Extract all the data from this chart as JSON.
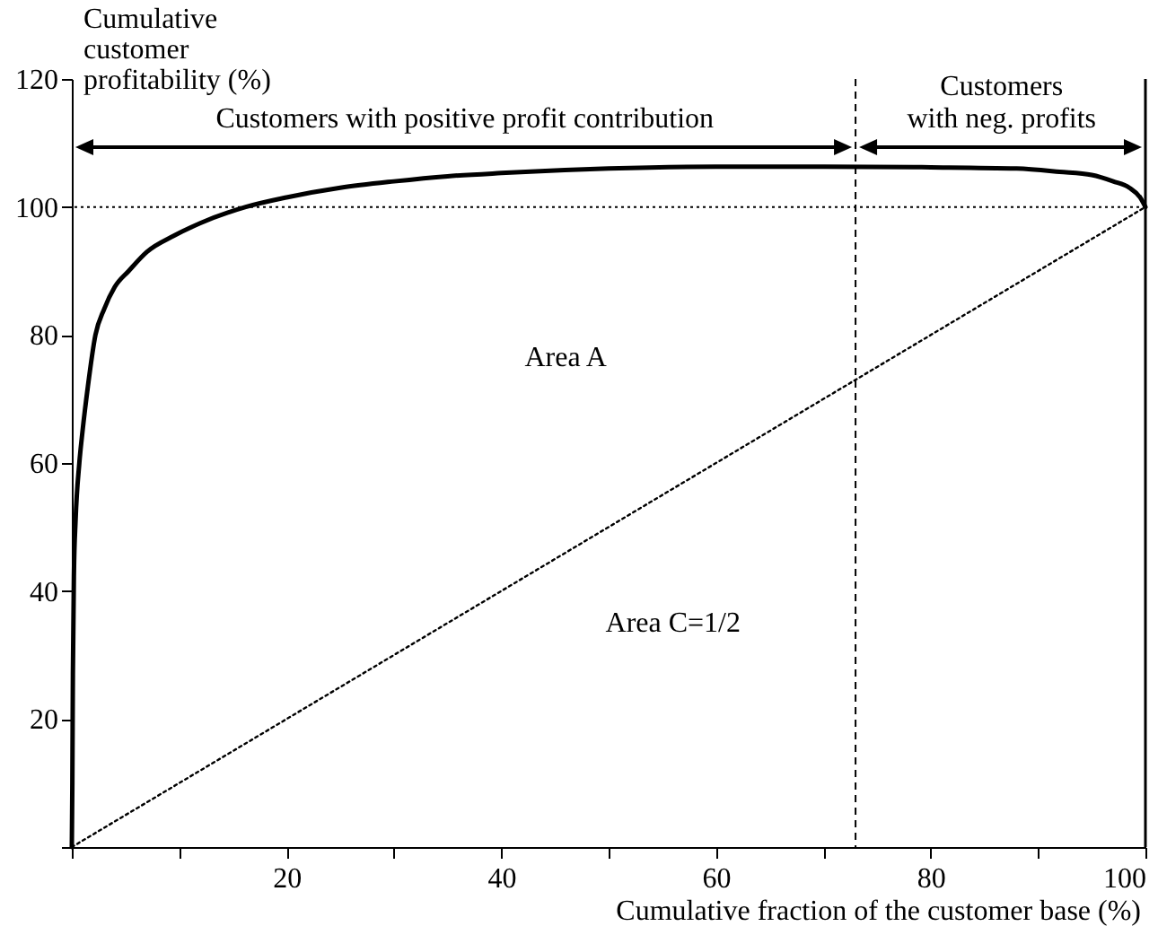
{
  "chart_data": {
    "type": "line",
    "xlabel": "Cumulative fraction of the customer base (%)",
    "ylabel": "Cumulative\ncustomer\nprofitability (%)",
    "xlim": [
      0,
      100
    ],
    "ylim": [
      0,
      120
    ],
    "xticks": [
      {
        "value": 0,
        "label": null
      },
      {
        "value": 10,
        "label": null
      },
      20,
      {
        "value": 30,
        "label": null
      },
      40,
      {
        "value": 50,
        "label": null
      },
      60,
      {
        "value": 70,
        "label": null
      },
      80,
      {
        "value": 90,
        "label": null
      },
      100
    ],
    "yticks": [
      {
        "value": 0,
        "label": null
      },
      20,
      40,
      60,
      80,
      100,
      120
    ],
    "series": [
      {
        "type": "line",
        "color": "#000000",
        "line_style": "solid",
        "x": [
          0,
          0.05,
          0.1,
          0.2,
          0.35,
          0.7,
          1,
          1.5,
          2.2,
          3,
          4,
          5.3,
          7,
          9.5,
          12,
          16.2,
          20,
          25,
          30,
          35,
          40,
          50,
          60,
          70,
          80,
          88,
          92,
          95,
          97,
          98.5,
          99.5,
          100
        ],
        "values": [
          0,
          10,
          27,
          43,
          51,
          60,
          65,
          72,
          80,
          84,
          87.5,
          90,
          93,
          95.5,
          97.5,
          100,
          101.5,
          103,
          104,
          104.8,
          105.3,
          106,
          106.3,
          106.3,
          106.2,
          106,
          105.5,
          105,
          104,
          103,
          101.5,
          100
        ]
      },
      {
        "type": "line",
        "color": "#000000",
        "line_style": "dotted",
        "x": [
          0,
          100
        ],
        "values": [
          0,
          100
        ]
      }
    ],
    "ref_lines": [
      {
        "axis": "y",
        "value": 100,
        "line_style": "dotted",
        "color": "#000000"
      },
      {
        "axis": "x",
        "value": 73,
        "line_style": "dashed",
        "color": "#000000"
      },
      {
        "axis": "x",
        "value": 100,
        "line_style": "solid",
        "color": "#000000"
      }
    ],
    "annotations": [
      "Customers with positive profit contribution",
      "Customers\nwith neg. profits",
      "Area A",
      "Area C=1/2"
    ],
    "grid": false
  }
}
